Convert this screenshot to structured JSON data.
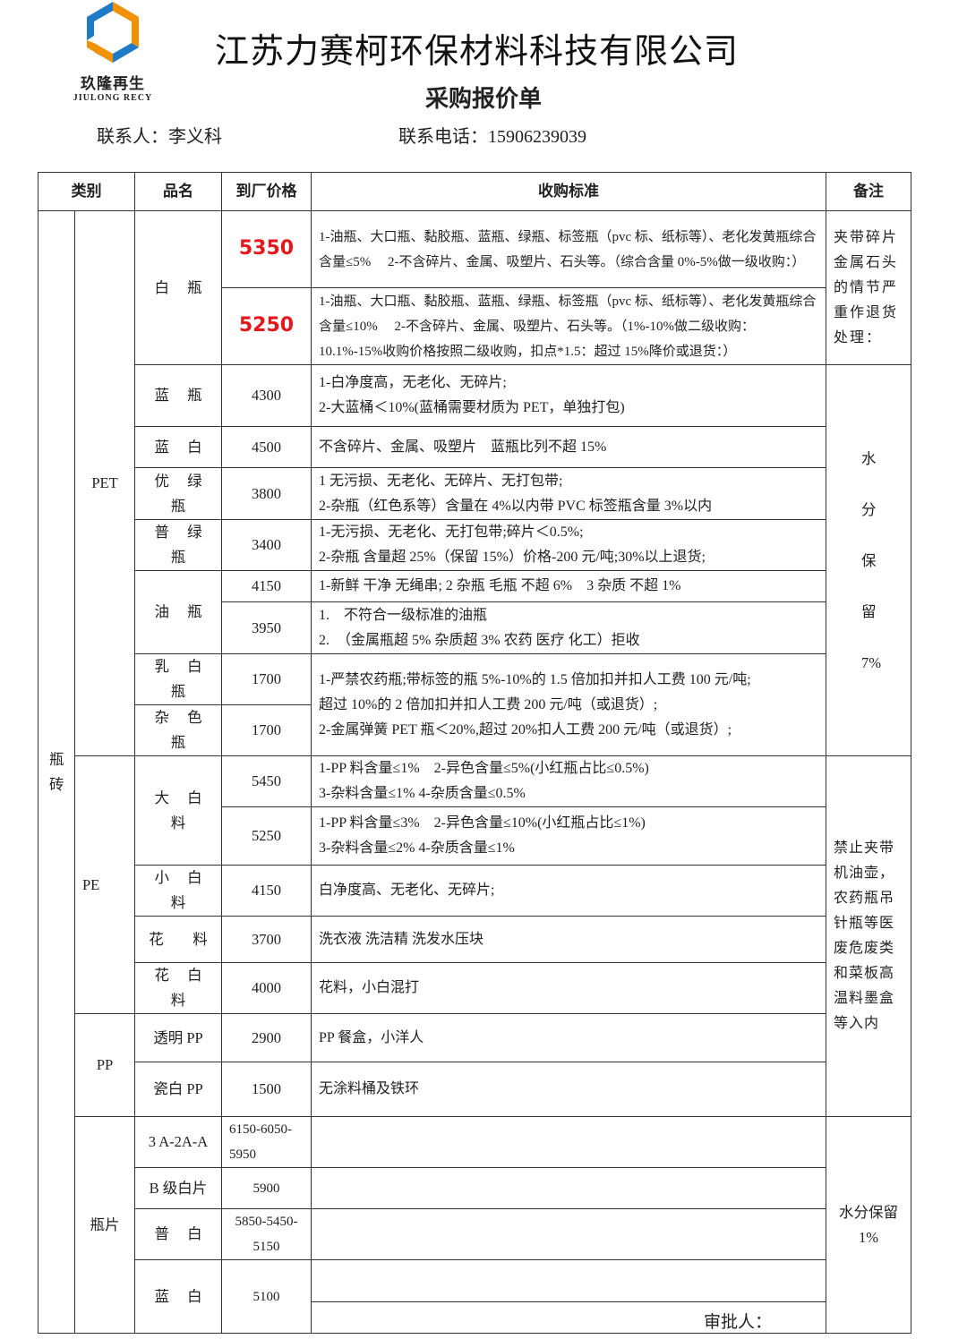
{
  "logo": {
    "cn": "玖隆再生",
    "en": "JIULONG RECY",
    "colors": [
      "#f39200",
      "#1f7bc8"
    ]
  },
  "company": "江苏力赛柯环保材料科技有限公司",
  "title": "采购报价单",
  "contact_person": "联系人：李义科",
  "contact_phone": "联系电话：15906239039",
  "headers": [
    "类别",
    "品名",
    "到厂价格",
    "收购标准",
    "备注"
  ],
  "category": "瓶砖",
  "groups": [
    "PET",
    "PE",
    "PP",
    "瓶片"
  ],
  "rows": [
    {
      "name": "白 瓶",
      "price": "5350",
      "std": "1-油瓶、大口瓶、黏胶瓶、蓝瓶、绿瓶、标签瓶（pvc 标、纸标等）、老化发黄瓶综合含量≤5%　 2-不含碎片、金属、吸塑片、石头等。（综合含量 0%-5%做一级收购：）"
    },
    {
      "price": "5250",
      "std": "1-油瓶、大口瓶、黏胶瓶、蓝瓶、绿瓶、标签瓶（pvc 标、纸标等）、老化发黄瓶综合含量≤10%　 2-不含碎片、金属、吸塑片、石头等。（1%-10%做二级收购：10.1%-15%收购价格按照二级收购，扣点*1.5：超过 15%降价或退货：）"
    },
    {
      "name": "蓝 瓶",
      "price": "4300",
      "std1": "1-白净度高，无老化、无碎片;",
      "std2": "2-大蓝桶＜10%(蓝桶需要材质为 PET，单独打包)"
    },
    {
      "name": "蓝 白",
      "price": "4500",
      "std": "不含碎片、金属、吸塑片　蓝瓶比列不超 15%"
    },
    {
      "name": "优 绿 瓶",
      "price": "3800",
      "std1": "1 无污损、无老化、无碎片、无打包带;",
      "std2": "2-杂瓶（红色系等）含量在 4%以内带 PVC 标签瓶含量 3%以内"
    },
    {
      "name": "普 绿 瓶",
      "price": "3400",
      "std1": "1-无污损、无老化、无打包带;碎片＜0.5%;",
      "std2": "2-杂瓶 含量超 25%（保留 15%）价格-200 元/吨;30%以上退货;"
    },
    {
      "name": "油 瓶",
      "price": "4150",
      "std": "1-新鲜 干净 无绳串; 2 杂瓶 毛瓶 不超 6%　3 杂质 不超 1%"
    },
    {
      "price": "3950",
      "std1": "1.　不符合一级标准的油瓶",
      "std2": "2.　（金属瓶超 5% 杂质超 3% 农药 医疗 化工）拒收"
    },
    {
      "name": "乳 白 瓶",
      "price": "1700",
      "std1": "1-严禁农药瓶;带标签的瓶 5%-10%的 1.5 倍加扣并扣人工费 100 元/吨;",
      "std2": "超过 10%的 2 倍加扣并扣人工费 200 元/吨（或退货）;",
      "std3": "2-金属弹簧 PET 瓶＜20%,超过 20%扣人工费 200 元/吨（或退货）;"
    },
    {
      "name": "杂 色 瓶",
      "price": "1700"
    },
    {
      "name": "大 白 料",
      "price": "5450",
      "std1": "1-PP 料含量≤1%　2-异色含量≤5%(小红瓶占比≤0.5%)",
      "std2": "3-杂料含量≤1% 4-杂质含量≤0.5%"
    },
    {
      "price": "5250",
      "std1": "1-PP 料含量≤3%　2-异色含量≤10%(小红瓶占比≤1%)",
      "std2": "3-杂料含量≤2% 4-杂质含量≤1%"
    },
    {
      "name": "小 白 料",
      "price": "4150",
      "std": "白净度高、无老化、无碎片;"
    },
    {
      "name": "花　料",
      "price": "3700",
      "std": "洗衣液 洗洁精 洗发水压块"
    },
    {
      "name": "花 白 料",
      "price": "4000",
      "std": "花料，小白混打"
    },
    {
      "name": "透明 PP",
      "price": "2900",
      "std": "PP 餐盒，小洋人"
    },
    {
      "name": "瓷白 PP",
      "price": "1500",
      "std": "无涂料桶及铁环"
    },
    {
      "name": "3 A-2A-A",
      "price": "6150-6050-5950",
      "std": ""
    },
    {
      "name": "B 级白片",
      "price": "5900",
      "std": ""
    },
    {
      "name": "普 白",
      "price": "5850-5450-5150",
      "std": ""
    },
    {
      "name": "蓝 白",
      "price": "5100",
      "std": ""
    }
  ],
  "remarks": [
    "夹带碎片金属石头的情节严重作退货处理：",
    "水分保留7%",
    "禁止夹带机油壶，农药瓶吊针瓶等医废危废类和菜板高温料墨盒等入内",
    "水分保留1%"
  ],
  "approve": "审批人："
}
